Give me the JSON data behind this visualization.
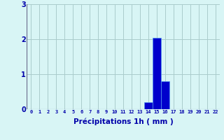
{
  "categories": [
    0,
    1,
    2,
    3,
    4,
    5,
    6,
    7,
    8,
    9,
    10,
    11,
    12,
    13,
    14,
    15,
    16,
    17,
    18,
    19,
    20,
    21,
    22
  ],
  "values": [
    0,
    0,
    0,
    0,
    0,
    0,
    0,
    0,
    0,
    0,
    0,
    0,
    0,
    0,
    0.2,
    2.05,
    0.8,
    0,
    0,
    0,
    0,
    0,
    0
  ],
  "bar_color": "#0000cc",
  "bar_edge_color": "#5599ee",
  "background_color": "#d8f5f5",
  "grid_color": "#aacccc",
  "xlabel": "Précipitations 1h ( mm )",
  "xlabel_color": "#0000aa",
  "tick_color": "#0000aa",
  "ylim": [
    0,
    3
  ],
  "yticks": [
    0,
    1,
    2,
    3
  ],
  "xlim": [
    -0.5,
    22.5
  ],
  "tick_fontsize": 5.0,
  "ylabel_fontsize": 7.0,
  "xlabel_fontsize": 7.5
}
